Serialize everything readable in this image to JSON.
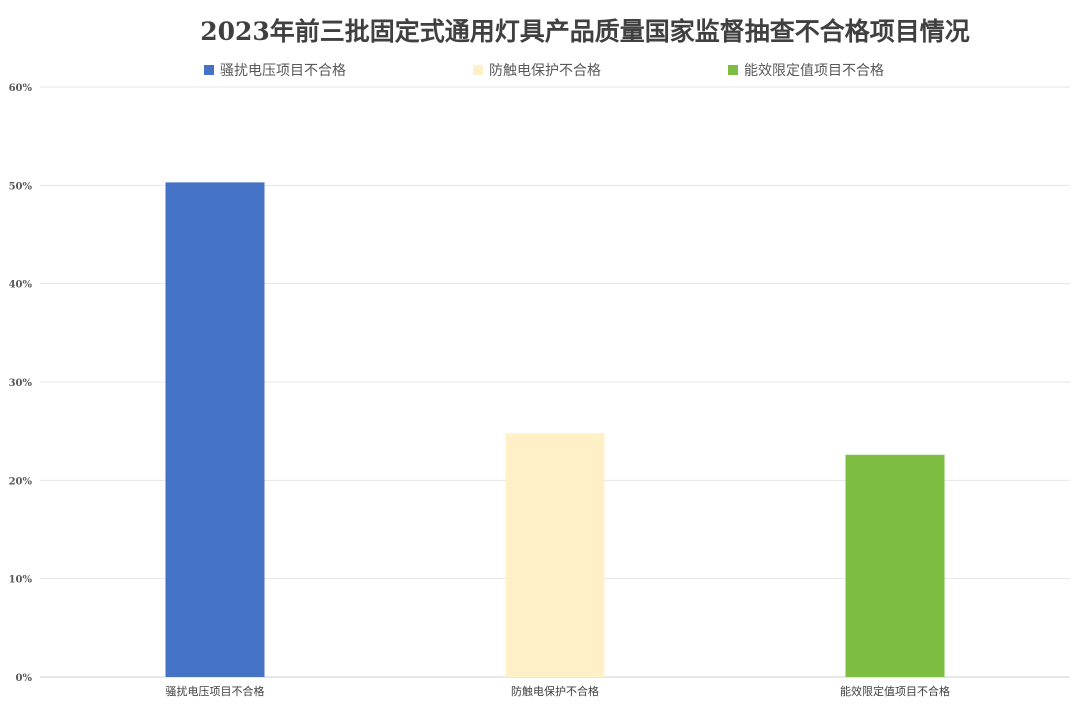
{
  "chart_data": {
    "type": "bar",
    "title": "2023年前三批固定式通用灯具产品质量国家监督抽查不合格项目情况",
    "categories": [
      "骚扰电压项目不合格",
      "防触电保护不合格",
      "能效限定值项目不合格"
    ],
    "values": [
      50.3,
      24.8,
      22.6
    ],
    "value_unit": "%",
    "colors": [
      "#4472c4",
      "#fff0c8",
      "#7cbd42"
    ],
    "ylim": [
      0,
      60
    ],
    "yticks": [
      "0%",
      "10%",
      "20%",
      "30%",
      "40%",
      "50%",
      "60%"
    ],
    "legend": {
      "position": "top",
      "entries": [
        "骚扰电压项目不合格",
        "防触电保护不合格",
        "能效限定值项目不合格"
      ]
    },
    "grid": true,
    "xlabel": "",
    "ylabel": ""
  }
}
